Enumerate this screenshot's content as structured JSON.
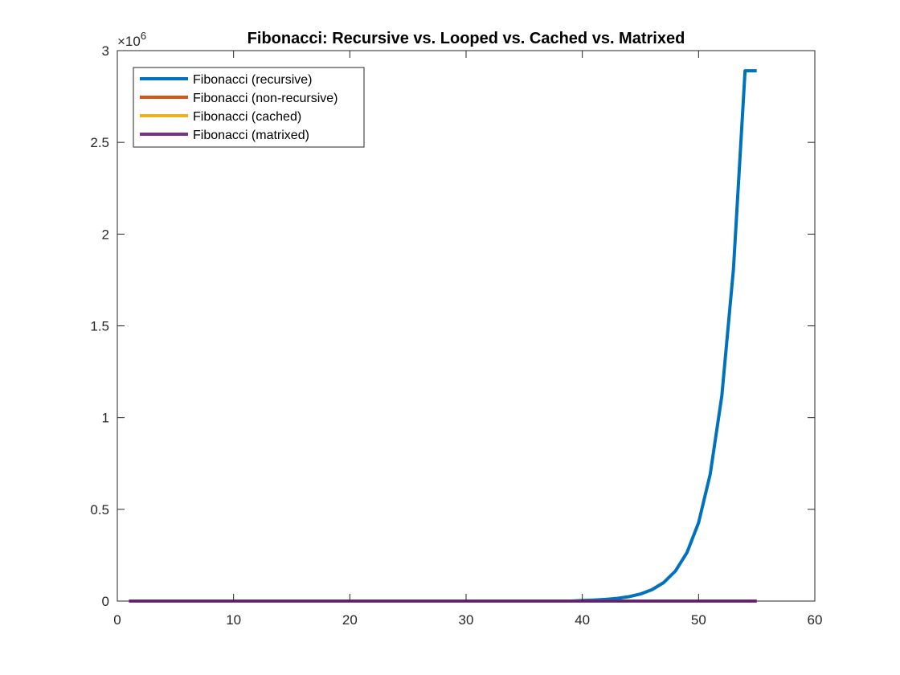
{
  "chart_data": {
    "type": "line",
    "title": "Fibonacci: Recursive vs. Looped vs. Cached vs. Matrixed",
    "xlabel": "",
    "ylabel": "",
    "xlim": [
      0,
      60
    ],
    "ylim": [
      0,
      3000000
    ],
    "xticks": [
      0,
      10,
      20,
      30,
      40,
      50,
      60
    ],
    "yticks": [
      0,
      500000,
      1000000,
      1500000,
      2000000,
      2500000,
      3000000
    ],
    "ytick_labels": [
      "0",
      "0.5",
      "1",
      "1.5",
      "2",
      "2.5",
      "3"
    ],
    "xtick_labels": [
      "0",
      "10",
      "20",
      "30",
      "40",
      "50",
      "60"
    ],
    "y_exponent_base": "×10",
    "y_exponent_power": "6",
    "grid": false,
    "legend_position": "top-left",
    "x": [
      1,
      2,
      3,
      4,
      5,
      6,
      7,
      8,
      9,
      10,
      11,
      12,
      13,
      14,
      15,
      16,
      17,
      18,
      19,
      20,
      21,
      22,
      23,
      24,
      25,
      26,
      27,
      28,
      29,
      30,
      31,
      32,
      33,
      34,
      35,
      36,
      37,
      38,
      39,
      40,
      41,
      42,
      43,
      44,
      45,
      46,
      47,
      48,
      49,
      50,
      51,
      52,
      53,
      54,
      55
    ],
    "series": [
      {
        "name": "Fibonacci (recursive)",
        "color": "#0072BD",
        "values": [
          0,
          0,
          0,
          0,
          0,
          0,
          0,
          0,
          0,
          0,
          0,
          0,
          0,
          0,
          0,
          0,
          0,
          0,
          0,
          0,
          0,
          0,
          0,
          0,
          0,
          0,
          0,
          0,
          0,
          0,
          0,
          0,
          0,
          0,
          0,
          0,
          0,
          0,
          0,
          3500,
          5600,
          9100,
          14700,
          23800,
          38500,
          62300,
          100800,
          163100,
          263900,
          427000,
          691000,
          1118000,
          1809000,
          2890000,
          2890000
        ]
      },
      {
        "name": "Fibonacci (non-recursive)",
        "color": "#D95319",
        "values": [
          0,
          0,
          0,
          0,
          0,
          0,
          0,
          0,
          0,
          0,
          0,
          0,
          0,
          0,
          0,
          0,
          0,
          0,
          0,
          0,
          0,
          0,
          0,
          0,
          0,
          0,
          0,
          0,
          0,
          0,
          0,
          0,
          0,
          0,
          0,
          0,
          0,
          0,
          0,
          0,
          0,
          0,
          0,
          0,
          0,
          0,
          0,
          0,
          0,
          0,
          0,
          0,
          0,
          0,
          0
        ]
      },
      {
        "name": "Fibonacci (cached)",
        "color": "#EDB120",
        "values": [
          0,
          0,
          0,
          0,
          0,
          0,
          0,
          0,
          0,
          0,
          0,
          0,
          0,
          0,
          0,
          0,
          0,
          0,
          0,
          0,
          0,
          0,
          0,
          0,
          0,
          0,
          0,
          0,
          0,
          0,
          0,
          0,
          0,
          0,
          0,
          0,
          0,
          0,
          0,
          0,
          0,
          0,
          0,
          0,
          0,
          0,
          0,
          0,
          0,
          0,
          0,
          0,
          0,
          0,
          0
        ]
      },
      {
        "name": "Fibonacci (matrixed)",
        "color": "#7E2F8E",
        "values": [
          0,
          0,
          0,
          0,
          0,
          0,
          0,
          0,
          0,
          0,
          0,
          0,
          0,
          0,
          0,
          0,
          0,
          0,
          0,
          0,
          0,
          0,
          0,
          0,
          0,
          0,
          0,
          0,
          0,
          0,
          0,
          0,
          0,
          0,
          0,
          0,
          0,
          0,
          0,
          0,
          0,
          0,
          0,
          0,
          0,
          0,
          0,
          0,
          0,
          0,
          0,
          0,
          0,
          0,
          0
        ]
      }
    ]
  }
}
